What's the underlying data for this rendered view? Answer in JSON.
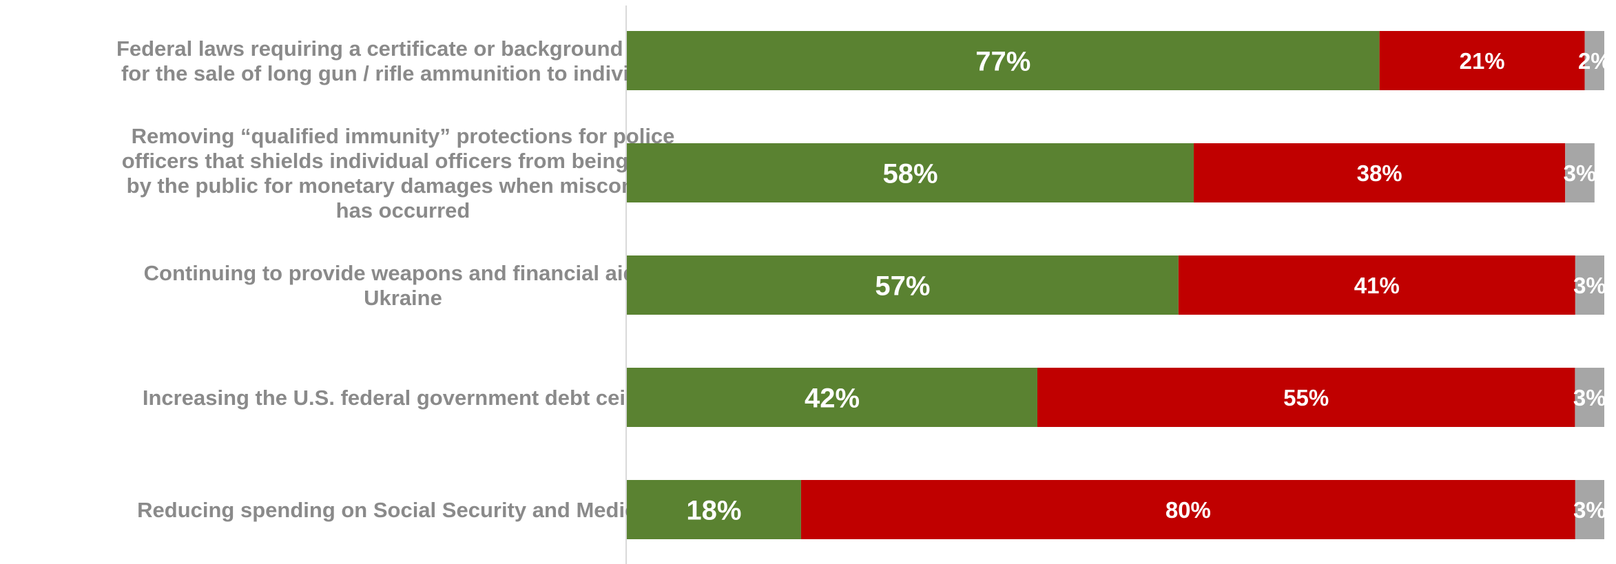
{
  "chart_data": {
    "type": "bar",
    "orientation": "horizontal",
    "stacked": true,
    "title": "",
    "xlabel": "",
    "ylabel": "",
    "xlim": [
      0,
      100
    ],
    "grid": false,
    "legend": "none",
    "categories": [
      [
        "Federal laws requiring a certificate or background check",
        "for the sale of long gun / rifle ammunition to individuals"
      ],
      [
        "Removing “qualified immunity” protections for police",
        "officers that shields individual officers from being sued",
        "by the public for monetary damages when misconduct",
        "has occurred"
      ],
      [
        "Continuing to provide weapons and financial aid to",
        "Ukraine"
      ],
      [
        "Increasing the U.S. federal government debt ceiling"
      ],
      [
        "Reducing spending on Social Security and Medicare"
      ]
    ],
    "series": [
      {
        "color": "#5a8231",
        "values": [
          77,
          58,
          57,
          42,
          18
        ],
        "labels": [
          "77%",
          "58%",
          "57%",
          "42%",
          "18%"
        ]
      },
      {
        "color": "#c00000",
        "values": [
          21,
          38,
          41,
          55,
          80
        ],
        "labels": [
          "21%",
          "38%",
          "41%",
          "55%",
          "80%"
        ]
      },
      {
        "color": "#a6a6a6",
        "values": [
          2,
          3,
          3,
          3,
          3
        ],
        "labels": [
          "2%",
          "3%",
          "3%",
          "3%",
          "3%"
        ]
      }
    ],
    "axis_color": "#d9d9d9"
  }
}
